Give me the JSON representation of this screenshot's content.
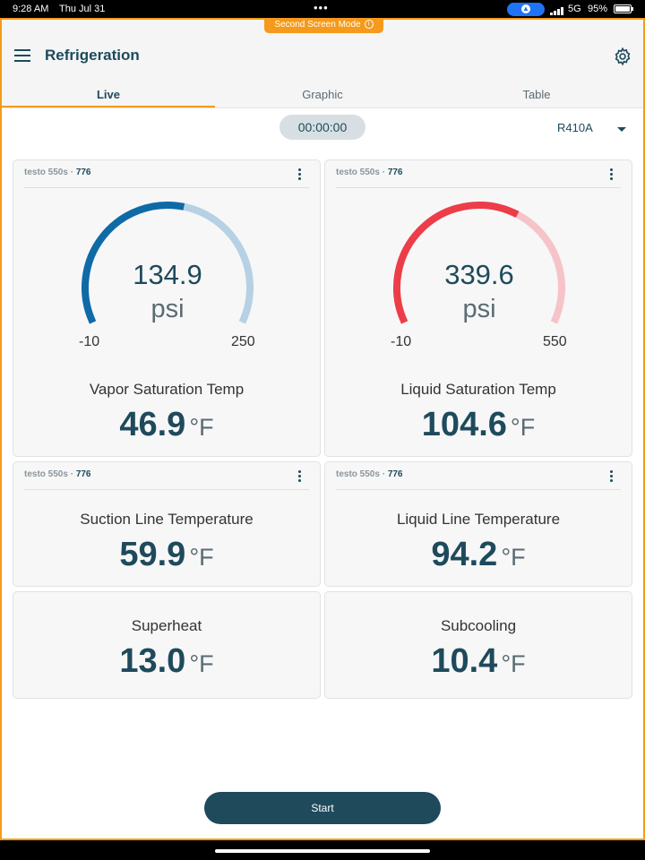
{
  "status_bar": {
    "time": "9:28 AM",
    "date": "Thu Jul 31",
    "network": "5G",
    "battery": "95%"
  },
  "second_screen_label": "Second Screen Mode",
  "header": {
    "title": "Refrigeration"
  },
  "tabs": [
    {
      "label": "Live"
    },
    {
      "label": "Graphic"
    },
    {
      "label": "Table"
    }
  ],
  "timer": "00:00:00",
  "refrigerant": "R410A",
  "cards": {
    "vapor": {
      "device": "testo 550s",
      "device_id": "776",
      "gauge": {
        "value": "134.9",
        "unit": "psi",
        "min": "-10",
        "max": "250",
        "fill": 0.55,
        "color": "#0f6aa8",
        "track": "#b6d1e4"
      },
      "label": "Vapor Saturation Temp",
      "value": "46.9",
      "unit": "°F"
    },
    "liquid": {
      "device": "testo 550s",
      "device_id": "776",
      "gauge": {
        "value": "339.6",
        "unit": "psi",
        "min": "-10",
        "max": "550",
        "fill": 0.62,
        "color": "#ec3d49",
        "track": "#f6c4c8"
      },
      "label": "Liquid Saturation Temp",
      "value": "104.6",
      "unit": "°F"
    },
    "suction": {
      "device": "testo 550s",
      "device_id": "776",
      "label": "Suction Line Temperature",
      "value": "59.9",
      "unit": "°F"
    },
    "liquid_line": {
      "device": "testo 550s",
      "device_id": "776",
      "label": "Liquid Line Temperature",
      "value": "94.2",
      "unit": "°F"
    },
    "superheat": {
      "label": "Superheat",
      "value": "13.0",
      "unit": "°F"
    },
    "subcooling": {
      "label": "Subcooling",
      "value": "10.4",
      "unit": "°F"
    }
  },
  "start_button": "Start"
}
